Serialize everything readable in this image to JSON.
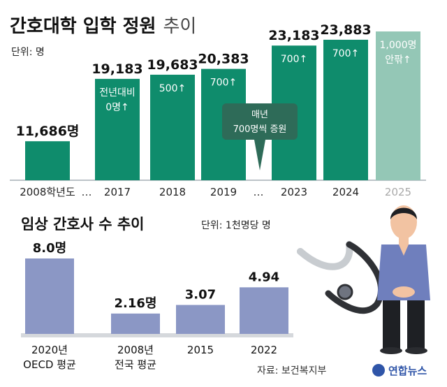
{
  "chart_data": [
    {
      "type": "bar",
      "title": "간호대학 입학 정원",
      "title_suffix": "추이",
      "unit_label": "단위: 명",
      "categories": [
        "2008학년도",
        "2017",
        "2018",
        "2019",
        "2023",
        "2024",
        "2025"
      ],
      "values": [
        11686,
        19183,
        19683,
        20383,
        23183,
        23883,
        24883
      ],
      "value_labels": [
        "11,686명",
        "19,183",
        "19,683",
        "20,383",
        "23,183",
        "23,883",
        ""
      ],
      "change_labels": [
        [],
        [
          "전년대비",
          "0명↑"
        ],
        [
          "500↑"
        ],
        [
          "700↑"
        ],
        [
          "700↑"
        ],
        [
          "700↑"
        ],
        [
          "1,000명",
          "안팎↑"
        ]
      ],
      "projected": [
        false,
        false,
        false,
        false,
        false,
        false,
        true
      ],
      "gap_marker": "…",
      "callout": [
        "매년",
        "700명씩 증원"
      ],
      "colors": {
        "bar": "#0f8c6c",
        "projected": "#94c7b6",
        "callout": "#2e6b58",
        "projected_text": "#a9a9a9"
      }
    },
    {
      "type": "bar",
      "title": "임상 간호사 수 추이",
      "unit_label": "단위: 1천명당 명",
      "categories": [
        [
          "2020년",
          "OECD 평균"
        ],
        [
          "2008년",
          "전국 평균"
        ],
        [
          "2015"
        ],
        [
          "2022"
        ]
      ],
      "values": [
        8.0,
        2.16,
        3.07,
        4.94
      ],
      "value_labels": [
        "8.0명",
        "2.16명",
        "3.07",
        "4.94"
      ],
      "colors": {
        "bar": "#8b97c5",
        "baseline": "#d5d8dc"
      }
    }
  ],
  "source": "자료: 보건복지부",
  "brand": "연합뉴스",
  "colors": {
    "brand_blue": "#2f55a8",
    "scrub": "#6f7fbd",
    "skin": "#f2c3a2"
  }
}
